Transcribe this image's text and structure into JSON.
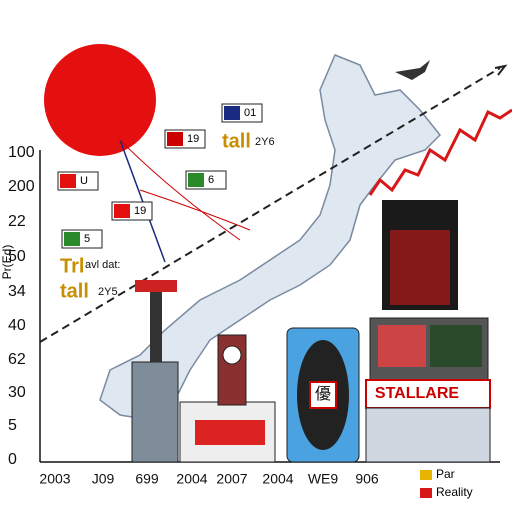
{
  "axis_title": "Pr(Ed)",
  "y_labels": [
    "100",
    "200",
    "22",
    "50",
    "34",
    "40",
    "62",
    "30",
    "5",
    "0"
  ],
  "x_labels": [
    "2003",
    "J09",
    "699",
    "2004",
    "2007",
    "2004",
    "WE9",
    "906"
  ],
  "tags": [
    {
      "label": "U"
    },
    {
      "label": "19"
    },
    {
      "label": "19"
    },
    {
      "label": "5"
    },
    {
      "label": "6"
    },
    {
      "label": "01"
    }
  ],
  "notes": [
    "tall",
    "2Y6",
    "Trl",
    "avl dat:",
    "tall",
    "2Y5"
  ],
  "sign": "STALLARE",
  "badge": "優",
  "legend": [
    "Par",
    "Reality"
  ]
}
